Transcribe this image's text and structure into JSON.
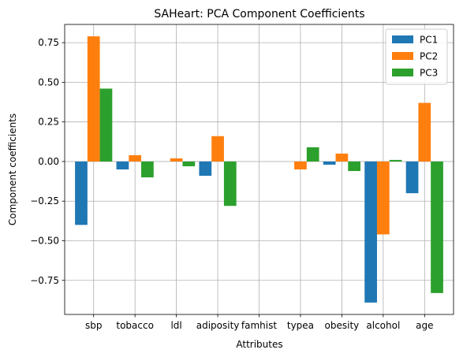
{
  "chart_data": {
    "type": "bar",
    "title": "SAHeart: PCA Component Coefficients",
    "xlabel": "Attributes",
    "ylabel": "Component coefficients",
    "categories": [
      "sbp",
      "tobacco",
      "ldl",
      "adiposity",
      "famhist",
      "typea",
      "obesity",
      "alcohol",
      "age"
    ],
    "series": [
      {
        "name": "PC1",
        "color": "#1f77b4",
        "values": [
          -0.4,
          -0.05,
          0.0,
          -0.09,
          0.0,
          0.0,
          -0.02,
          -0.89,
          -0.2
        ]
      },
      {
        "name": "PC2",
        "color": "#ff7f0e",
        "values": [
          0.79,
          0.04,
          0.02,
          0.16,
          0.0,
          -0.05,
          0.05,
          -0.46,
          0.37
        ]
      },
      {
        "name": "PC3",
        "color": "#2ca02c",
        "values": [
          0.46,
          -0.1,
          -0.03,
          -0.28,
          0.0,
          0.09,
          -0.06,
          0.01,
          -0.83
        ]
      }
    ],
    "ylim": [
      -0.965,
      0.865
    ],
    "yticks": [
      -0.75,
      -0.5,
      -0.25,
      0.0,
      0.25,
      0.5,
      0.75
    ],
    "ytick_labels": [
      "−0.75",
      "−0.50",
      "−0.25",
      "0.00",
      "0.25",
      "0.50",
      "0.75"
    ],
    "grid": true,
    "legend_position": "top-right"
  }
}
